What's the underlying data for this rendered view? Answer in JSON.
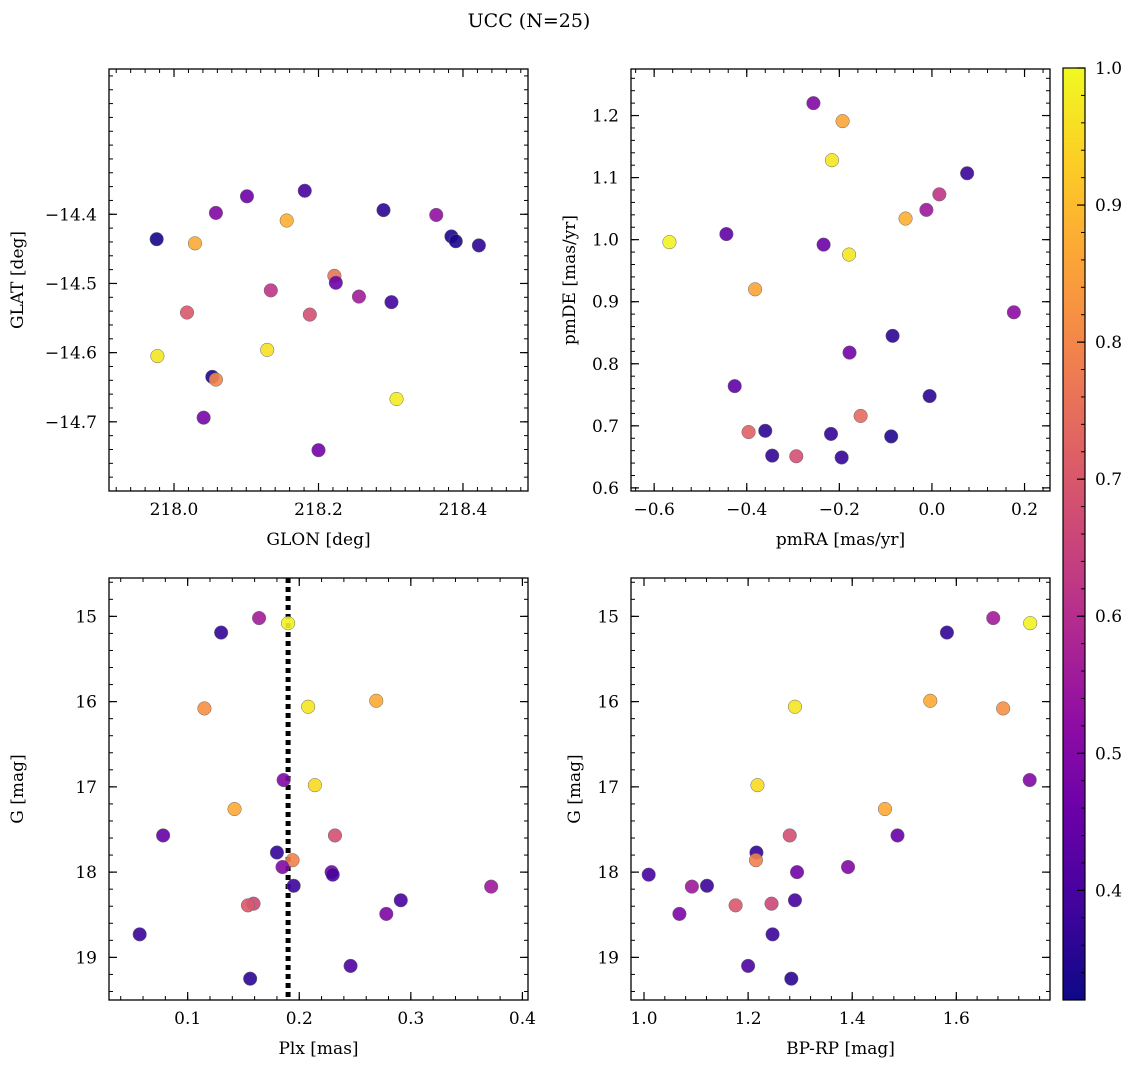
{
  "figure_title": "UCC (N=25)",
  "colorbar": {
    "range": [
      0.32,
      1.0
    ],
    "ticks": [
      0.4,
      0.5,
      0.6,
      0.7,
      0.8,
      0.9,
      1.0
    ],
    "tick_labels": [
      "0.4",
      "0.5",
      "0.6",
      "0.7",
      "0.8",
      "0.9",
      "1.0"
    ],
    "colormap": "plasma"
  },
  "chart_data": [
    {
      "type": "scatter",
      "id": "glon-glat",
      "xlabel": "GLON [deg]",
      "ylabel": "GLAT [deg]",
      "xlim": [
        217.91,
        218.49
      ],
      "ylim": [
        -14.8,
        -14.19
      ],
      "y_inverted": false,
      "xticks": [
        218.0,
        218.2,
        218.4
      ],
      "xtick_labels": [
        "218.0",
        "218.2",
        "218.4"
      ],
      "yticks": [
        -14.4,
        -14.5,
        -14.6,
        -14.7
      ],
      "ytick_labels": [
        "−14.4",
        "−14.5",
        "−14.6",
        "−14.7"
      ],
      "x_minor_step": 0.02,
      "y_minor_step": 0.02,
      "vline": null,
      "points": [
        {
          "x": 217.976,
          "y": -14.436,
          "c": 0.33
        },
        {
          "x": 218.029,
          "y": -14.442,
          "c": 0.87
        },
        {
          "x": 218.058,
          "y": -14.398,
          "c": 0.5
        },
        {
          "x": 218.101,
          "y": -14.374,
          "c": 0.46
        },
        {
          "x": 218.181,
          "y": -14.366,
          "c": 0.4
        },
        {
          "x": 218.156,
          "y": -14.409,
          "c": 0.88
        },
        {
          "x": 218.29,
          "y": -14.394,
          "c": 0.36
        },
        {
          "x": 218.363,
          "y": -14.401,
          "c": 0.53
        },
        {
          "x": 218.384,
          "y": -14.432,
          "c": 0.34
        },
        {
          "x": 218.39,
          "y": -14.439,
          "c": 0.34
        },
        {
          "x": 218.422,
          "y": -14.445,
          "c": 0.36
        },
        {
          "x": 218.222,
          "y": -14.489,
          "c": 0.76
        },
        {
          "x": 218.224,
          "y": -14.499,
          "c": 0.46
        },
        {
          "x": 218.134,
          "y": -14.51,
          "c": 0.62
        },
        {
          "x": 218.256,
          "y": -14.519,
          "c": 0.56
        },
        {
          "x": 218.301,
          "y": -14.527,
          "c": 0.39
        },
        {
          "x": 218.018,
          "y": -14.542,
          "c": 0.7
        },
        {
          "x": 218.188,
          "y": -14.545,
          "c": 0.68
        },
        {
          "x": 217.977,
          "y": -14.605,
          "c": 0.97
        },
        {
          "x": 218.129,
          "y": -14.596,
          "c": 0.96
        },
        {
          "x": 218.053,
          "y": -14.635,
          "c": 0.34
        },
        {
          "x": 218.058,
          "y": -14.639,
          "c": 0.8
        },
        {
          "x": 218.308,
          "y": -14.667,
          "c": 0.98
        },
        {
          "x": 218.041,
          "y": -14.694,
          "c": 0.48
        },
        {
          "x": 218.2,
          "y": -14.741,
          "c": 0.47
        }
      ]
    },
    {
      "type": "scatter",
      "id": "pmra-pmde",
      "xlabel": "pmRA [mas/yr]",
      "ylabel": "pmDE [mas/yr]",
      "xlim": [
        -0.65,
        0.255
      ],
      "ylim": [
        0.595,
        1.275
      ],
      "y_inverted": false,
      "xticks": [
        -0.6,
        -0.4,
        -0.2,
        0.0,
        0.2
      ],
      "xtick_labels": [
        "−0.6",
        "−0.4",
        "−0.2",
        "0.0",
        "0.2"
      ],
      "yticks": [
        0.6,
        0.7,
        0.8,
        0.9,
        1.0,
        1.1,
        1.2
      ],
      "ytick_labels": [
        "0.6",
        "0.7",
        "0.8",
        "0.9",
        "1.0",
        "1.1",
        "1.2"
      ],
      "x_minor_step": 0.04,
      "y_minor_step": 0.02,
      "vline": null,
      "points": [
        {
          "x": -0.256,
          "y": 1.22,
          "c": 0.5
        },
        {
          "x": -0.193,
          "y": 1.191,
          "c": 0.86
        },
        {
          "x": -0.216,
          "y": 1.128,
          "c": 0.97
        },
        {
          "x": 0.076,
          "y": 1.107,
          "c": 0.38
        },
        {
          "x": 0.016,
          "y": 1.073,
          "c": 0.62
        },
        {
          "x": -0.012,
          "y": 1.048,
          "c": 0.55
        },
        {
          "x": -0.057,
          "y": 1.034,
          "c": 0.88
        },
        {
          "x": -0.444,
          "y": 1.009,
          "c": 0.44
        },
        {
          "x": -0.567,
          "y": 0.996,
          "c": 0.99
        },
        {
          "x": -0.234,
          "y": 0.992,
          "c": 0.46
        },
        {
          "x": -0.179,
          "y": 0.976,
          "c": 0.97
        },
        {
          "x": -0.382,
          "y": 0.92,
          "c": 0.86
        },
        {
          "x": 0.177,
          "y": 0.883,
          "c": 0.52
        },
        {
          "x": -0.085,
          "y": 0.845,
          "c": 0.36
        },
        {
          "x": -0.178,
          "y": 0.818,
          "c": 0.47
        },
        {
          "x": -0.426,
          "y": 0.764,
          "c": 0.44
        },
        {
          "x": -0.005,
          "y": 0.748,
          "c": 0.36
        },
        {
          "x": -0.154,
          "y": 0.716,
          "c": 0.74
        },
        {
          "x": -0.36,
          "y": 0.692,
          "c": 0.36
        },
        {
          "x": -0.396,
          "y": 0.69,
          "c": 0.72
        },
        {
          "x": -0.218,
          "y": 0.687,
          "c": 0.37
        },
        {
          "x": -0.088,
          "y": 0.683,
          "c": 0.35
        },
        {
          "x": -0.345,
          "y": 0.652,
          "c": 0.37
        },
        {
          "x": -0.293,
          "y": 0.651,
          "c": 0.68
        },
        {
          "x": -0.195,
          "y": 0.649,
          "c": 0.37
        }
      ]
    },
    {
      "type": "scatter",
      "id": "plx-g",
      "xlabel": "Plx [mas]",
      "ylabel": "G [mag]",
      "xlim": [
        0.0295,
        0.405
      ],
      "ylim": [
        14.55,
        19.5
      ],
      "y_inverted": true,
      "xticks": [
        0.1,
        0.2,
        0.3,
        0.4
      ],
      "xtick_labels": [
        "0.1",
        "0.2",
        "0.3",
        "0.4"
      ],
      "yticks": [
        15,
        16,
        17,
        18,
        19
      ],
      "ytick_labels": [
        "15",
        "16",
        "17",
        "18",
        "19"
      ],
      "x_minor_step": 0.02,
      "y_minor_step": 0.2,
      "vline": 0.19,
      "points": [
        {
          "x": 0.164,
          "y": 15.02,
          "c": 0.56
        },
        {
          "x": 0.19,
          "y": 15.08,
          "c": 0.99
        },
        {
          "x": 0.13,
          "y": 15.19,
          "c": 0.37
        },
        {
          "x": 0.269,
          "y": 15.99,
          "c": 0.87
        },
        {
          "x": 0.208,
          "y": 16.06,
          "c": 0.97
        },
        {
          "x": 0.115,
          "y": 16.08,
          "c": 0.82
        },
        {
          "x": 0.186,
          "y": 16.92,
          "c": 0.5
        },
        {
          "x": 0.214,
          "y": 16.98,
          "c": 0.95
        },
        {
          "x": 0.142,
          "y": 17.26,
          "c": 0.87
        },
        {
          "x": 0.078,
          "y": 17.57,
          "c": 0.45
        },
        {
          "x": 0.232,
          "y": 17.57,
          "c": 0.68
        },
        {
          "x": 0.18,
          "y": 17.77,
          "c": 0.37
        },
        {
          "x": 0.194,
          "y": 17.86,
          "c": 0.79
        },
        {
          "x": 0.185,
          "y": 17.94,
          "c": 0.5
        },
        {
          "x": 0.229,
          "y": 18.0,
          "c": 0.47
        },
        {
          "x": 0.23,
          "y": 18.03,
          "c": 0.4
        },
        {
          "x": 0.195,
          "y": 18.16,
          "c": 0.38
        },
        {
          "x": 0.372,
          "y": 18.17,
          "c": 0.55
        },
        {
          "x": 0.291,
          "y": 18.33,
          "c": 0.4
        },
        {
          "x": 0.159,
          "y": 18.37,
          "c": 0.66
        },
        {
          "x": 0.154,
          "y": 18.39,
          "c": 0.7
        },
        {
          "x": 0.278,
          "y": 18.49,
          "c": 0.49
        },
        {
          "x": 0.057,
          "y": 18.73,
          "c": 0.38
        },
        {
          "x": 0.246,
          "y": 19.1,
          "c": 0.41
        },
        {
          "x": 0.156,
          "y": 19.25,
          "c": 0.36
        }
      ]
    },
    {
      "type": "scatter",
      "id": "bprp-g",
      "xlabel": "BP-RP [mag]",
      "ylabel": "G [mag]",
      "xlim": [
        0.975,
        1.78
      ],
      "ylim": [
        14.55,
        19.5
      ],
      "y_inverted": true,
      "xticks": [
        1.0,
        1.2,
        1.4,
        1.6
      ],
      "xtick_labels": [
        "1.0",
        "1.2",
        "1.4",
        "1.6"
      ],
      "yticks": [
        15,
        16,
        17,
        18,
        19
      ],
      "ytick_labels": [
        "15",
        "16",
        "17",
        "18",
        "19"
      ],
      "x_minor_step": 0.04,
      "y_minor_step": 0.2,
      "vline": null,
      "points": [
        {
          "x": 1.671,
          "y": 15.02,
          "c": 0.56
        },
        {
          "x": 1.742,
          "y": 15.08,
          "c": 0.99
        },
        {
          "x": 1.582,
          "y": 15.19,
          "c": 0.37
        },
        {
          "x": 1.55,
          "y": 15.99,
          "c": 0.87
        },
        {
          "x": 1.29,
          "y": 16.06,
          "c": 0.97
        },
        {
          "x": 1.69,
          "y": 16.08,
          "c": 0.82
        },
        {
          "x": 1.741,
          "y": 16.92,
          "c": 0.5
        },
        {
          "x": 1.218,
          "y": 16.98,
          "c": 0.95
        },
        {
          "x": 1.463,
          "y": 17.26,
          "c": 0.87
        },
        {
          "x": 1.487,
          "y": 17.57,
          "c": 0.45
        },
        {
          "x": 1.28,
          "y": 17.57,
          "c": 0.68
        },
        {
          "x": 1.216,
          "y": 17.77,
          "c": 0.37
        },
        {
          "x": 1.215,
          "y": 17.86,
          "c": 0.79
        },
        {
          "x": 1.392,
          "y": 17.94,
          "c": 0.5
        },
        {
          "x": 1.294,
          "y": 18.0,
          "c": 0.47
        },
        {
          "x": 1.009,
          "y": 18.03,
          "c": 0.4
        },
        {
          "x": 1.121,
          "y": 18.16,
          "c": 0.38
        },
        {
          "x": 1.092,
          "y": 18.17,
          "c": 0.55
        },
        {
          "x": 1.29,
          "y": 18.33,
          "c": 0.4
        },
        {
          "x": 1.245,
          "y": 18.37,
          "c": 0.66
        },
        {
          "x": 1.176,
          "y": 18.39,
          "c": 0.7
        },
        {
          "x": 1.068,
          "y": 18.49,
          "c": 0.49
        },
        {
          "x": 1.247,
          "y": 18.73,
          "c": 0.38
        },
        {
          "x": 1.2,
          "y": 19.1,
          "c": 0.41
        },
        {
          "x": 1.283,
          "y": 19.25,
          "c": 0.36
        }
      ]
    }
  ]
}
